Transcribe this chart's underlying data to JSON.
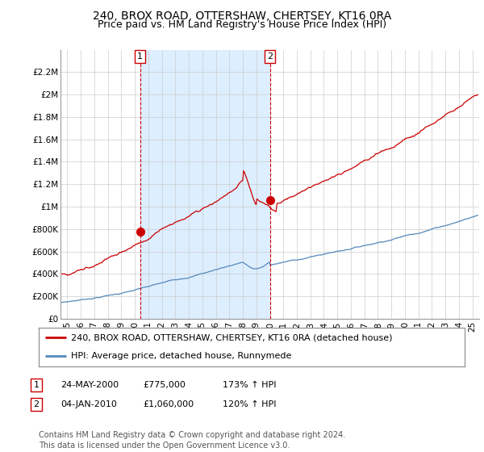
{
  "title1": "240, BROX ROAD, OTTERSHAW, CHERTSEY, KT16 0RA",
  "title2": "Price paid vs. HM Land Registry's House Price Index (HPI)",
  "ylabel_ticks": [
    "£0",
    "£200K",
    "£400K",
    "£600K",
    "£800K",
    "£1M",
    "£1.2M",
    "£1.4M",
    "£1.6M",
    "£1.8M",
    "£2M",
    "£2.2M"
  ],
  "ylabel_values": [
    0,
    200000,
    400000,
    600000,
    800000,
    1000000,
    1200000,
    1400000,
    1600000,
    1800000,
    2000000,
    2200000
  ],
  "ylim": [
    0,
    2400000
  ],
  "xlim_start": 1994.5,
  "xlim_end": 2025.5,
  "red_line_color": "#cc0000",
  "blue_line_color": "#5588bb",
  "shade_color": "#ddeeff",
  "grid_color": "#cccccc",
  "bg_color": "#ffffff",
  "marker1_x": 2000.39,
  "marker1_y": 775000,
  "marker2_x": 2010.01,
  "marker2_y": 1060000,
  "vline1_x": 2000.39,
  "vline2_x": 2010.01,
  "legend_label_red": "240, BROX ROAD, OTTERSHAW, CHERTSEY, KT16 0RA (detached house)",
  "legend_label_blue": "HPI: Average price, detached house, Runnymede",
  "table_rows": [
    [
      "1",
      "24-MAY-2000",
      "£775,000",
      "173% ↑ HPI"
    ],
    [
      "2",
      "04-JAN-2010",
      "£1,060,000",
      "120% ↑ HPI"
    ]
  ],
  "footnote": "Contains HM Land Registry data © Crown copyright and database right 2024.\nThis data is licensed under the Open Government Licence v3.0.",
  "title1_fontsize": 10,
  "title2_fontsize": 9,
  "tick_fontsize": 7.5,
  "legend_fontsize": 8,
  "table_fontsize": 8,
  "footnote_fontsize": 7
}
